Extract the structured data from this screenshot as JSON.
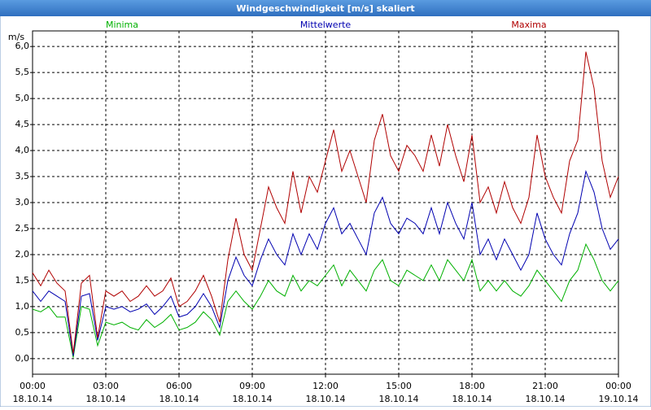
{
  "chart_data": {
    "type": "line",
    "title": "Windgeschwindigkeit [m/s] skaliert",
    "y_label": "m/s",
    "x": [
      0,
      20,
      40,
      60,
      80,
      100,
      120,
      140,
      160,
      180,
      200,
      220,
      240,
      260,
      280,
      300,
      320,
      340,
      360,
      380,
      400,
      420,
      440,
      460,
      480,
      500,
      520,
      540,
      560,
      580,
      600,
      620,
      640,
      660,
      680,
      700,
      720,
      740,
      760,
      780,
      800,
      820,
      840,
      860,
      880,
      900,
      920,
      940,
      960,
      980,
      1000,
      1020,
      1040,
      1060,
      1080,
      1100,
      1120,
      1140,
      1160,
      1180,
      1200,
      1220,
      1240,
      1260,
      1280,
      1300,
      1320,
      1340,
      1360,
      1380,
      1400,
      1420,
      1440
    ],
    "series": [
      {
        "name": "Minima",
        "color": "#00b000",
        "values": [
          0.95,
          0.9,
          1.0,
          0.8,
          0.8,
          0.02,
          1.0,
          0.95,
          0.25,
          0.7,
          0.65,
          0.7,
          0.6,
          0.55,
          0.75,
          0.6,
          0.7,
          0.85,
          0.55,
          0.6,
          0.7,
          0.9,
          0.75,
          0.45,
          1.1,
          1.3,
          1.1,
          0.95,
          1.2,
          1.5,
          1.3,
          1.2,
          1.6,
          1.3,
          1.5,
          1.4,
          1.6,
          1.8,
          1.4,
          1.7,
          1.5,
          1.3,
          1.7,
          1.9,
          1.5,
          1.4,
          1.7,
          1.6,
          1.5,
          1.8,
          1.5,
          1.9,
          1.7,
          1.5,
          1.9,
          1.3,
          1.5,
          1.3,
          1.5,
          1.3,
          1.2,
          1.4,
          1.7,
          1.5,
          1.3,
          1.1,
          1.5,
          1.7,
          2.2,
          1.9,
          1.5,
          1.3,
          1.5
        ]
      },
      {
        "name": "Mittelwerte",
        "color": "#0000b0",
        "values": [
          1.3,
          1.1,
          1.3,
          1.2,
          1.1,
          0.05,
          1.2,
          1.25,
          0.35,
          1.0,
          0.95,
          1.0,
          0.9,
          0.95,
          1.05,
          0.85,
          1.0,
          1.2,
          0.8,
          0.85,
          1.0,
          1.25,
          1.0,
          0.6,
          1.5,
          1.95,
          1.6,
          1.4,
          1.9,
          2.3,
          2.0,
          1.8,
          2.4,
          2.0,
          2.4,
          2.1,
          2.6,
          2.9,
          2.4,
          2.6,
          2.3,
          2.0,
          2.8,
          3.1,
          2.6,
          2.4,
          2.7,
          2.6,
          2.4,
          2.9,
          2.4,
          3.0,
          2.6,
          2.3,
          3.0,
          2.0,
          2.3,
          1.9,
          2.3,
          2.0,
          1.7,
          2.0,
          2.8,
          2.3,
          2.0,
          1.8,
          2.4,
          2.8,
          3.6,
          3.2,
          2.5,
          2.1,
          2.3
        ]
      },
      {
        "name": "Maxima",
        "color": "#b00000",
        "values": [
          1.65,
          1.4,
          1.7,
          1.45,
          1.3,
          0.1,
          1.45,
          1.6,
          0.4,
          1.3,
          1.2,
          1.3,
          1.1,
          1.2,
          1.4,
          1.2,
          1.3,
          1.55,
          1.0,
          1.1,
          1.3,
          1.6,
          1.2,
          0.7,
          1.9,
          2.7,
          2.0,
          1.7,
          2.5,
          3.3,
          2.9,
          2.6,
          3.6,
          2.8,
          3.5,
          3.2,
          3.8,
          4.4,
          3.6,
          4.0,
          3.5,
          3.0,
          4.2,
          4.7,
          3.9,
          3.6,
          4.1,
          3.9,
          3.6,
          4.3,
          3.7,
          4.5,
          3.9,
          3.4,
          4.3,
          3.0,
          3.3,
          2.8,
          3.4,
          2.9,
          2.6,
          3.1,
          4.3,
          3.5,
          3.1,
          2.8,
          3.8,
          4.2,
          5.9,
          5.2,
          3.8,
          3.1,
          3.5
        ]
      }
    ],
    "xlim": [
      0,
      1440
    ],
    "xticks": [
      {
        "value": 0,
        "label": [
          "00:00",
          "18.10.14"
        ]
      },
      {
        "value": 180,
        "label": [
          "03:00",
          "18.10.14"
        ]
      },
      {
        "value": 360,
        "label": [
          "06:00",
          "18.10.14"
        ]
      },
      {
        "value": 540,
        "label": [
          "09:00",
          "18.10.14"
        ]
      },
      {
        "value": 720,
        "label": [
          "12:00",
          "18.10.14"
        ]
      },
      {
        "value": 900,
        "label": [
          "15:00",
          "18.10.14"
        ]
      },
      {
        "value": 1080,
        "label": [
          "18:00",
          "18.10.14"
        ]
      },
      {
        "value": 1260,
        "label": [
          "21:00",
          "18.10.14"
        ]
      },
      {
        "value": 1440,
        "label": [
          "00:00",
          "19.10.14"
        ]
      }
    ],
    "ylim": [
      -0.3,
      6.3
    ],
    "yticks": [
      {
        "value": 0,
        "label": "0,0"
      },
      {
        "value": 0.5,
        "label": "0,5"
      },
      {
        "value": 1,
        "label": "1,0"
      },
      {
        "value": 1.5,
        "label": "1,5"
      },
      {
        "value": 2,
        "label": "2,0"
      },
      {
        "value": 2.5,
        "label": "2,5"
      },
      {
        "value": 3,
        "label": "3,0"
      },
      {
        "value": 3.5,
        "label": "3,5"
      },
      {
        "value": 4,
        "label": "4,0"
      },
      {
        "value": 4.5,
        "label": "4,5"
      },
      {
        "value": 5,
        "label": "5,0"
      },
      {
        "value": 5.5,
        "label": "5,5"
      },
      {
        "value": 6,
        "label": "6,0"
      }
    ],
    "grid": true
  }
}
